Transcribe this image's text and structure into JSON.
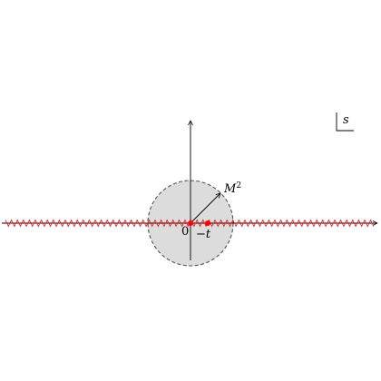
{
  "diagram": {
    "labels": {
      "origin": "0",
      "minus_t": "−t",
      "radius": "M",
      "radius_exp": "2",
      "plane_var": "s"
    },
    "colors": {
      "disk_fill": "#dcdcdc",
      "disk_stroke": "#555555",
      "branch_cut": "#e8262a",
      "point": "#ff0000",
      "axis": "#000000"
    }
  }
}
